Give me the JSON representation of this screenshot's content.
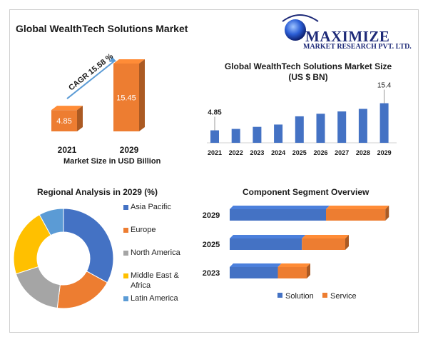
{
  "header": {
    "title": "Global WealthTech Solutions Market",
    "logo_line1": "MAXIMIZE",
    "logo_line2": "MARKET RESEARCH PVT. LTD."
  },
  "colors": {
    "blue": "#4472c4",
    "orange": "#ed7d31",
    "gray": "#a5a5a5",
    "yellow": "#ffc000",
    "lightblue": "#5b9bd5"
  },
  "chart_data": [
    {
      "type": "bar",
      "categories": [
        "2021",
        "2029"
      ],
      "values": [
        4.85,
        15.45
      ],
      "value_labels": [
        "4.85",
        "15.45"
      ],
      "annotation": "CAGR 15.58 %",
      "xlabel": "Market Size in USD Billion"
    },
    {
      "type": "bar",
      "title": "Global WealthTech Solutions Market Size (US $ BN)",
      "title_line1": "Global WealthTech Solutions Market Size",
      "title_line2": "(US $ BN)",
      "categories": [
        "2021",
        "2022",
        "2023",
        "2024",
        "2025",
        "2026",
        "2027",
        "2028",
        "2029"
      ],
      "values": [
        4.85,
        5.4,
        6.2,
        7.1,
        10.3,
        11.3,
        12.2,
        13.2,
        15.4
      ],
      "labels": {
        "first": "4.85",
        "last": "15.4"
      }
    },
    {
      "type": "pie",
      "title": "Regional Analysis in 2029 (%)",
      "labels": [
        "Asia Pacific",
        "Europe",
        "North America",
        "Middle East & Africa",
        "Latin America"
      ],
      "legend_lines": [
        [
          "Asia Pacific"
        ],
        [
          "Europe"
        ],
        [
          "North America"
        ],
        [
          "Middle East &",
          "Africa"
        ],
        [
          "Latin America"
        ]
      ],
      "values": [
        33,
        19,
        18,
        22,
        8
      ],
      "colors": [
        "#4472c4",
        "#ed7d31",
        "#a5a5a5",
        "#ffc000",
        "#5b9bd5"
      ],
      "donut": true
    },
    {
      "type": "bar",
      "orientation": "horizontal-stacked",
      "title": "Component Segment Overview",
      "categories": [
        "2029",
        "2025",
        "2023"
      ],
      "series": [
        {
          "name": "Solution",
          "values": [
            60,
            45,
            30
          ]
        },
        {
          "name": "Service",
          "values": [
            37,
            27,
            18
          ]
        }
      ]
    }
  ]
}
